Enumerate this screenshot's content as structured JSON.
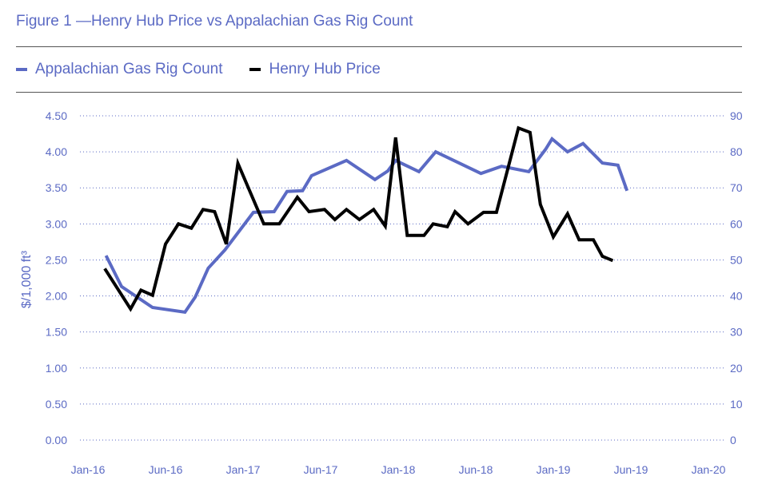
{
  "chart_data": {
    "type": "line",
    "title": "Figure 1 —Henry Hub Price vs Appalachian Gas Rig Count",
    "ylabel": "$/1,000 ft³",
    "ylim": [
      0,
      4.5
    ],
    "y2lim": [
      0,
      90
    ],
    "yticks": [
      "0.00",
      "0.50",
      "1.00",
      "1.50",
      "2.00",
      "2.50",
      "3.00",
      "3.50",
      "4.00",
      "4.50"
    ],
    "y2ticks": [
      "0",
      "10",
      "20",
      "30",
      "40",
      "50",
      "60",
      "70",
      "80",
      "90"
    ],
    "xticks": [
      "Jan-16",
      "Jun-16",
      "Jan-17",
      "Jun-17",
      "Jan-18",
      "Jun-18",
      "Jan-19",
      "Jun-19",
      "Jan-20"
    ],
    "x_unit": "months since Jan-16 (label spacing = 6)",
    "grid": true,
    "legend_position": "top-left",
    "series": [
      {
        "name": "Appalachian Gas Rig Count",
        "axis": "right",
        "color": "#5b6ac4",
        "points": [
          [
            1.4,
            51.2
          ],
          [
            2.6,
            42.6
          ],
          [
            5.0,
            36.8
          ],
          [
            7.5,
            35.5
          ],
          [
            8.3,
            39.7
          ],
          [
            9.3,
            47.7
          ],
          [
            10.6,
            52.8
          ],
          [
            12.8,
            63.2
          ],
          [
            14.4,
            63.4
          ],
          [
            15.4,
            69.0
          ],
          [
            16.6,
            69.2
          ],
          [
            17.3,
            73.4
          ],
          [
            20.0,
            77.6
          ],
          [
            22.2,
            72.3
          ],
          [
            23.2,
            74.7
          ],
          [
            23.8,
            77.6
          ],
          [
            25.6,
            74.5
          ],
          [
            26.9,
            80.0
          ],
          [
            30.4,
            74.0
          ],
          [
            32.0,
            76.0
          ],
          [
            34.1,
            74.5
          ],
          [
            35.4,
            80.7
          ],
          [
            35.9,
            83.6
          ],
          [
            37.1,
            80.0
          ],
          [
            38.3,
            82.3
          ],
          [
            39.8,
            76.9
          ],
          [
            41.0,
            76.3
          ],
          [
            41.7,
            69.2
          ]
        ]
      },
      {
        "name": "Henry Hub Price",
        "axis": "left",
        "color": "#000000",
        "points": [
          [
            1.3,
            2.38
          ],
          [
            3.3,
            1.82
          ],
          [
            4.1,
            2.08
          ],
          [
            5.0,
            2.01
          ],
          [
            6.0,
            2.72
          ],
          [
            7.0,
            3.0
          ],
          [
            8.0,
            2.94
          ],
          [
            8.9,
            3.2
          ],
          [
            9.8,
            3.17
          ],
          [
            10.7,
            2.72
          ],
          [
            11.6,
            3.84
          ],
          [
            13.6,
            3.0
          ],
          [
            14.8,
            3.0
          ],
          [
            16.2,
            3.37
          ],
          [
            17.1,
            3.17
          ],
          [
            18.3,
            3.2
          ],
          [
            19.1,
            3.06
          ],
          [
            20.0,
            3.2
          ],
          [
            21.0,
            3.06
          ],
          [
            22.1,
            3.2
          ],
          [
            23.0,
            2.97
          ],
          [
            23.8,
            4.2
          ],
          [
            24.7,
            2.84
          ],
          [
            26.0,
            2.84
          ],
          [
            26.7,
            3.0
          ],
          [
            27.8,
            2.96
          ],
          [
            28.4,
            3.17
          ],
          [
            29.4,
            3.0
          ],
          [
            30.6,
            3.16
          ],
          [
            31.6,
            3.16
          ],
          [
            33.3,
            4.33
          ],
          [
            34.2,
            4.27
          ],
          [
            35.0,
            3.27
          ],
          [
            36.0,
            2.82
          ],
          [
            37.1,
            3.14
          ],
          [
            38.0,
            2.78
          ],
          [
            39.1,
            2.78
          ],
          [
            39.8,
            2.55
          ],
          [
            40.6,
            2.49
          ]
        ]
      }
    ]
  }
}
